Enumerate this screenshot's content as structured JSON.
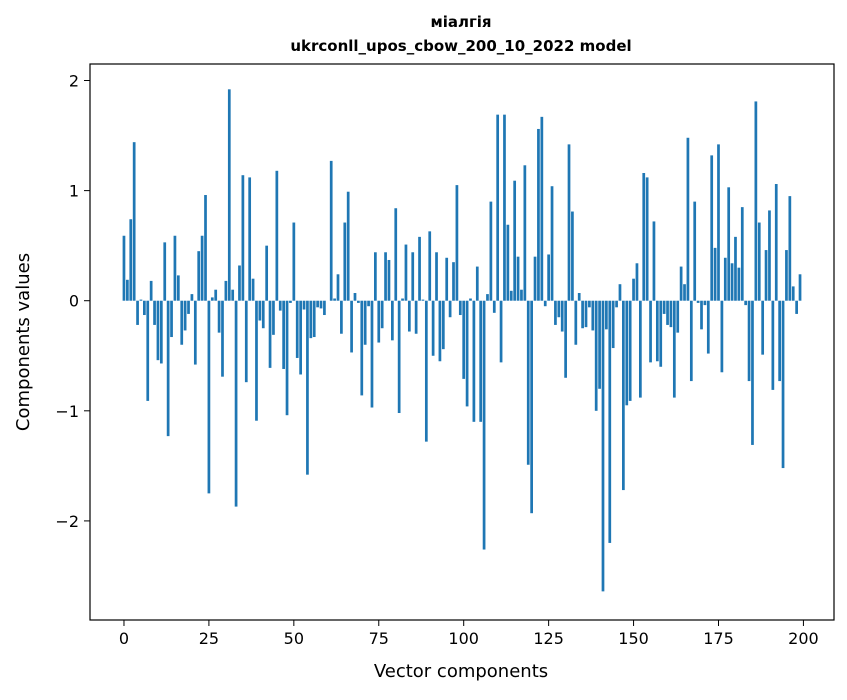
{
  "chart_data": {
    "type": "bar",
    "title": "міалгія",
    "subtitle": "ukrconll_upos_cbow_200_10_2022 model",
    "xlabel": "Vector components",
    "ylabel": "Components values",
    "xlim": [
      -10,
      209
    ],
    "ylim": [
      -2.9,
      2.15
    ],
    "xticks": [
      0,
      25,
      50,
      75,
      100,
      125,
      150,
      175,
      200
    ],
    "yticks": [
      -2,
      -1,
      0,
      1,
      2
    ],
    "xtick_labels": [
      "0",
      "25",
      "50",
      "75",
      "100",
      "125",
      "150",
      "175",
      "200"
    ],
    "ytick_labels": [
      "−2",
      "−1",
      "0",
      "1",
      "2"
    ],
    "grid": false,
    "bar_color": "#1f77b4",
    "x": [
      0,
      1,
      2,
      3,
      4,
      5,
      6,
      7,
      8,
      9,
      10,
      11,
      12,
      13,
      14,
      15,
      16,
      17,
      18,
      19,
      20,
      21,
      22,
      23,
      24,
      25,
      26,
      27,
      28,
      29,
      30,
      31,
      32,
      33,
      34,
      35,
      36,
      37,
      38,
      39,
      40,
      41,
      42,
      43,
      44,
      45,
      46,
      47,
      48,
      49,
      50,
      51,
      52,
      53,
      54,
      55,
      56,
      57,
      58,
      59,
      60,
      61,
      62,
      63,
      64,
      65,
      66,
      67,
      68,
      69,
      70,
      71,
      72,
      73,
      74,
      75,
      76,
      77,
      78,
      79,
      80,
      81,
      82,
      83,
      84,
      85,
      86,
      87,
      88,
      89,
      90,
      91,
      92,
      93,
      94,
      95,
      96,
      97,
      98,
      99,
      100,
      101,
      102,
      103,
      104,
      105,
      106,
      107,
      108,
      109,
      110,
      111,
      112,
      113,
      114,
      115,
      116,
      117,
      118,
      119,
      120,
      121,
      122,
      123,
      124,
      125,
      126,
      127,
      128,
      129,
      130,
      131,
      132,
      133,
      134,
      135,
      136,
      137,
      138,
      139,
      140,
      141,
      142,
      143,
      144,
      145,
      146,
      147,
      148,
      149,
      150,
      151,
      152,
      153,
      154,
      155,
      156,
      157,
      158,
      159,
      160,
      161,
      162,
      163,
      164,
      165,
      166,
      167,
      168,
      169,
      170,
      171,
      172,
      173,
      174,
      175,
      176,
      177,
      178,
      179,
      180,
      181,
      182,
      183,
      184,
      185,
      186,
      187,
      188,
      189,
      190,
      191,
      192,
      193,
      194,
      195,
      196,
      197,
      198,
      199
    ],
    "values": [
      0.59,
      0.19,
      0.74,
      1.44,
      -0.22,
      0.01,
      -0.13,
      -0.91,
      0.18,
      -0.22,
      -0.54,
      -0.57,
      0.53,
      -1.23,
      -0.33,
      0.59,
      0.23,
      -0.4,
      -0.27,
      -0.12,
      0.06,
      -0.58,
      0.45,
      0.59,
      0.96,
      -1.75,
      0.03,
      0.1,
      -0.29,
      -0.69,
      0.18,
      1.92,
      0.1,
      -1.87,
      0.32,
      1.14,
      -0.74,
      1.12,
      0.2,
      -1.09,
      -0.18,
      -0.25,
      0.5,
      -0.61,
      -0.31,
      1.18,
      -0.09,
      -0.62,
      -1.04,
      -0.02,
      0.71,
      -0.52,
      -0.67,
      -0.08,
      -1.58,
      -0.34,
      -0.33,
      -0.06,
      -0.07,
      -0.13,
      0.0,
      1.27,
      0.02,
      0.24,
      -0.3,
      0.71,
      0.99,
      -0.47,
      0.07,
      -0.02,
      -0.86,
      -0.4,
      -0.05,
      -0.97,
      0.44,
      -0.38,
      -0.25,
      0.44,
      0.37,
      -0.36,
      0.84,
      -1.02,
      0.02,
      0.51,
      -0.28,
      0.44,
      -0.3,
      0.58,
      0.01,
      -1.28,
      0.63,
      -0.5,
      0.44,
      -0.55,
      -0.44,
      0.39,
      -0.15,
      0.35,
      1.05,
      -0.13,
      -0.71,
      -0.96,
      0.02,
      -1.1,
      0.31,
      -1.1,
      -2.26,
      0.06,
      0.9,
      -0.11,
      1.69,
      -0.56,
      1.69,
      0.69,
      0.09,
      1.09,
      0.4,
      0.1,
      1.23,
      -1.49,
      -1.93,
      0.4,
      1.56,
      1.67,
      -0.05,
      0.42,
      1.04,
      -0.22,
      -0.15,
      -0.28,
      -0.7,
      1.42,
      0.81,
      -0.4,
      0.07,
      -0.25,
      -0.24,
      -0.06,
      -0.27,
      -1.0,
      -0.8,
      -2.64,
      -0.26,
      -2.2,
      -0.43,
      -0.06,
      0.15,
      -1.72,
      -0.95,
      -0.91,
      0.2,
      0.34,
      -0.88,
      1.16,
      1.12,
      -0.56,
      0.72,
      -0.55,
      -0.6,
      -0.12,
      -0.22,
      -0.24,
      -0.88,
      -0.29,
      0.31,
      0.15,
      1.48,
      -0.73,
      0.9,
      -0.02,
      -0.26,
      -0.04,
      -0.48,
      1.32,
      0.48,
      1.42,
      -0.65,
      0.39,
      1.03,
      0.34,
      0.58,
      0.3,
      0.85,
      -0.04,
      -0.73,
      -1.31,
      1.81,
      0.71,
      -0.49,
      0.46,
      0.82,
      -0.81,
      1.06,
      -0.73,
      -1.52,
      0.46,
      0.95,
      0.13,
      -0.12,
      0.24
    ]
  }
}
